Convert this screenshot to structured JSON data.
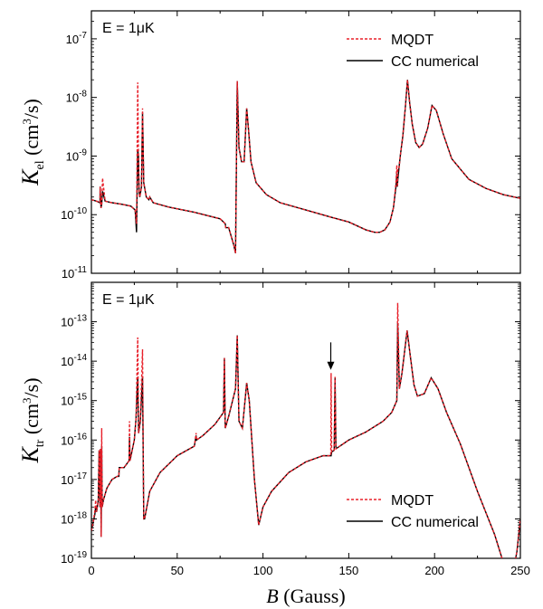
{
  "chart_data": [
    {
      "type": "line",
      "panel_label": "E = 1μK",
      "ylabel": {
        "symbol": "K",
        "sub": "el",
        "unit": " (cm",
        "unit_sup": "3",
        "unit_tail": "/s)"
      },
      "xlim": [
        0,
        250
      ],
      "ylim": [
        1e-11,
        3e-07
      ],
      "yscale": "log",
      "x_ticks": [
        0,
        50,
        100,
        150,
        200,
        250
      ],
      "y_ticks": [
        {
          "value": 1e-11,
          "base": "10",
          "exp": "-11"
        },
        {
          "value": 1e-10,
          "base": "10",
          "exp": "-10"
        },
        {
          "value": 1e-09,
          "base": "10",
          "exp": "-9"
        },
        {
          "value": 1e-08,
          "base": "10",
          "exp": "-8"
        },
        {
          "value": 1e-07,
          "base": "10",
          "exp": "-7"
        }
      ],
      "legend_position": "top-right",
      "series": [
        {
          "name": "MQDT",
          "color": "#e8202a",
          "dash": "dashed",
          "x": [
            0,
            3,
            5,
            5.1,
            5.6,
            6,
            6.5,
            8,
            12,
            18,
            23,
            25.5,
            26.3,
            27,
            27.4,
            27.8,
            28.2,
            29.2,
            29.8,
            30.5,
            32,
            33.5,
            34,
            36,
            45,
            60,
            75,
            78,
            78.3,
            80,
            83,
            84,
            85,
            86,
            87.5,
            89,
            90.5,
            91.5,
            93,
            96,
            102,
            110,
            125,
            140,
            150,
            160,
            165,
            168,
            171,
            174,
            176,
            177.5,
            178,
            178.3,
            178.6,
            179.2,
            180,
            181.5,
            183,
            184.2,
            185.5,
            187,
            189,
            191,
            193,
            196,
            198.5,
            201,
            205,
            210,
            220,
            230,
            240,
            250
          ],
          "y": [
            1.8e-10,
            1.7e-10,
            1.6e-10,
            3e-10,
            1.3e-10,
            1.5e-10,
            4.2e-10,
            1.7e-10,
            1.6e-10,
            1.5e-10,
            1.4e-10,
            1.2e-10,
            7e-11,
            1.8e-08,
            1.2e-09,
            2.4e-10,
            2e-10,
            3e-10,
            6.5e-09,
            3.5e-10,
            2e-10,
            1.8e-10,
            2e-10,
            1.6e-10,
            1.35e-10,
            1.1e-10,
            8.5e-11,
            7e-11,
            6e-11,
            6e-11,
            3e-11,
            2.2e-11,
            1.9e-08,
            1.4e-09,
            8e-10,
            8e-10,
            6.5e-09,
            3e-09,
            8e-10,
            3.5e-10,
            2.2e-10,
            1.6e-10,
            1.2e-10,
            9e-11,
            7.5e-11,
            5.5e-11,
            5e-11,
            5e-11,
            5.5e-11,
            7.5e-11,
            1.3e-10,
            3.5e-10,
            7e-10,
            3e-10,
            6e-10,
            6e-10,
            1e-09,
            2.2e-09,
            7e-09,
            2e-08,
            8e-09,
            3.5e-09,
            1.7e-09,
            1.4e-09,
            1.6e-09,
            3e-09,
            7.3e-09,
            6e-09,
            2.4e-09,
            9e-10,
            4e-10,
            2.8e-10,
            2.2e-10,
            1.9e-10
          ]
        },
        {
          "name": "CC numerical",
          "color": "#000000",
          "dash": "solid",
          "x": [
            0,
            3,
            5,
            5.1,
            5.6,
            6,
            6.5,
            8,
            12,
            18,
            23,
            25.5,
            26.3,
            27,
            27.4,
            27.8,
            28.2,
            29.2,
            29.8,
            30.5,
            32,
            33.5,
            34,
            36,
            45,
            60,
            75,
            78,
            78.3,
            80,
            83,
            84,
            85,
            86,
            87.5,
            89,
            90.5,
            91.5,
            93,
            96,
            102,
            110,
            125,
            140,
            150,
            160,
            165,
            168,
            171,
            174,
            176,
            177.5,
            178,
            178.3,
            178.6,
            179.2,
            180,
            181.5,
            183,
            184.2,
            185.5,
            187,
            189,
            191,
            193,
            196,
            198.5,
            201,
            205,
            210,
            220,
            230,
            240,
            250
          ],
          "y": [
            1.8e-10,
            1.7e-10,
            1.6e-10,
            3e-10,
            1.3e-10,
            1.5e-10,
            2.5e-10,
            1.7e-10,
            1.6e-10,
            1.5e-10,
            1.4e-10,
            1.2e-10,
            5e-11,
            1.3e-09,
            1e-09,
            2.4e-10,
            2e-10,
            3e-10,
            5.5e-09,
            3.5e-10,
            2e-10,
            1.8e-10,
            2e-10,
            1.6e-10,
            1.35e-10,
            1.1e-10,
            8.5e-11,
            7e-11,
            6e-11,
            6e-11,
            3e-11,
            2.2e-11,
            1.9e-08,
            1.4e-09,
            8e-10,
            8e-10,
            6.5e-09,
            3e-09,
            8e-10,
            3.5e-10,
            2.2e-10,
            1.6e-10,
            1.2e-10,
            9e-11,
            7.5e-11,
            5.5e-11,
            5e-11,
            5e-11,
            5.5e-11,
            7.5e-11,
            1.3e-10,
            3e-10,
            5e-10,
            3e-10,
            4e-10,
            6e-10,
            1e-09,
            2.2e-09,
            7e-09,
            2e-08,
            8e-09,
            3.5e-09,
            1.7e-09,
            1.4e-09,
            1.6e-09,
            3e-09,
            7.3e-09,
            6e-09,
            2.4e-09,
            9e-10,
            4e-10,
            2.8e-10,
            2.2e-10,
            1.9e-10
          ]
        }
      ]
    },
    {
      "type": "line",
      "panel_label": "E = 1μK",
      "ylabel": {
        "symbol": "K",
        "sub": "tr",
        "unit": " (cm",
        "unit_sup": "3",
        "unit_tail": "/s)"
      },
      "xlim": [
        0,
        250
      ],
      "ylim": [
        1e-19,
        1e-12
      ],
      "yscale": "log",
      "x_ticks": [
        0,
        50,
        100,
        150,
        200,
        250
      ],
      "y_ticks": [
        {
          "value": 1e-19,
          "base": "10",
          "exp": "-19"
        },
        {
          "value": 1e-18,
          "base": "10",
          "exp": "-18"
        },
        {
          "value": 1e-17,
          "base": "10",
          "exp": "-17"
        },
        {
          "value": 1e-16,
          "base": "10",
          "exp": "-16"
        },
        {
          "value": 1e-15,
          "base": "10",
          "exp": "-15"
        },
        {
          "value": 1e-14,
          "base": "10",
          "exp": "-14"
        },
        {
          "value": 1e-13,
          "base": "10",
          "exp": "-13"
        }
      ],
      "legend_position": "bottom-right",
      "annotations": [
        {
          "type": "arrow",
          "x": 139.5,
          "y_tail": 3e-14,
          "y_head": 6e-15
        }
      ],
      "series": [
        {
          "name": "MQDT",
          "color": "#e8202a",
          "dash": "dashed",
          "x": [
            0,
            1,
            2,
            2.5,
            3,
            4,
            4.5,
            5,
            5.3,
            5.7,
            6,
            6.3,
            7,
            9,
            12,
            15,
            16,
            16.2,
            19,
            22,
            22.2,
            22.5,
            25,
            26,
            27,
            27.5,
            28.5,
            29.8,
            30.5,
            31,
            34,
            40,
            50,
            60,
            61,
            61.3,
            65,
            72,
            77,
            77.5,
            78,
            80,
            84,
            85,
            86,
            88,
            90.5,
            92,
            95,
            97.5,
            100,
            105,
            115,
            125,
            135,
            139.5,
            139.7,
            140,
            141.5,
            142,
            142.5,
            150,
            160,
            170,
            175,
            178,
            178.5,
            179.5,
            181,
            184,
            186,
            188,
            190,
            194,
            198,
            202,
            207,
            215,
            225,
            235,
            240,
            244,
            246,
            248,
            250
          ],
          "y": [
            5e-19,
            8e-19,
            1.6e-18,
            3e-18,
            1.5e-18,
            3e-18,
            5.5e-17,
            2e-18,
            6e-17,
            3.5e-19,
            2e-16,
            2e-18,
            3e-18,
            6e-18,
            1e-17,
            1.2e-17,
            1.2e-17,
            2e-17,
            2e-17,
            3e-17,
            3e-16,
            3e-17,
            1e-16,
            3.5e-16,
            4e-14,
            1.5e-16,
            3e-16,
            2e-14,
            1e-18,
            1e-18,
            5e-18,
            1.5e-17,
            4e-17,
            7e-17,
            1.5e-16,
            1e-16,
            1.3e-16,
            2.5e-16,
            5e-16,
            1.2e-14,
            2e-16,
            4e-16,
            2e-15,
            4.5e-14,
            3e-16,
            2e-16,
            2.8e-15,
            1e-15,
            1e-17,
            7e-19,
            2e-18,
            5e-18,
            1.5e-17,
            2.8e-17,
            4e-17,
            4e-17,
            5e-15,
            5e-17,
            5.5e-17,
            4e-15,
            6e-17,
            1e-16,
            1.6e-16,
            3e-16,
            5e-16,
            1e-15,
            3e-13,
            2e-15,
            5e-15,
            6e-14,
            1.2e-14,
            2.5e-15,
            1.3e-15,
            1.5e-15,
            3.8e-15,
            2e-15,
            5e-16,
            8e-17,
            5e-18,
            4e-19,
            8e-20,
            3e-20,
            5e-20,
            1.5e-19,
            1e-18
          ]
        },
        {
          "name": "CC numerical",
          "color": "#000000",
          "dash": "solid",
          "x": [
            0,
            1,
            2,
            2.5,
            3,
            4,
            4.5,
            5,
            5.3,
            5.7,
            6,
            6.3,
            7,
            9,
            12,
            15,
            16,
            16.2,
            19,
            22,
            22.2,
            22.5,
            25,
            26,
            27,
            27.5,
            28.5,
            29.8,
            30.5,
            31,
            34,
            40,
            50,
            60,
            61,
            61.3,
            65,
            72,
            77,
            77.5,
            78,
            80,
            84,
            85,
            86,
            88,
            90.5,
            92,
            95,
            97.5,
            100,
            105,
            115,
            125,
            135,
            139.5,
            139.7,
            140,
            141.5,
            142,
            142.5,
            150,
            160,
            170,
            175,
            178,
            178.5,
            179.5,
            181,
            184,
            186,
            188,
            190,
            194,
            198,
            202,
            207,
            215,
            225,
            235,
            240,
            244,
            246,
            248,
            250
          ],
          "y": [
            5e-19,
            8e-19,
            1.3e-18,
            2e-18,
            1.5e-18,
            3e-18,
            5.5e-17,
            2e-18,
            6e-17,
            3.5e-19,
            7e-17,
            2e-18,
            3e-18,
            6e-18,
            1e-17,
            1.2e-17,
            1.2e-17,
            2e-17,
            2e-17,
            3e-17,
            1.2e-16,
            3e-17,
            1e-16,
            3.5e-16,
            4e-15,
            1.5e-16,
            3e-16,
            4e-15,
            1e-18,
            1e-18,
            5e-18,
            1.5e-17,
            4e-17,
            7e-17,
            1.3e-16,
            1e-16,
            1.3e-16,
            2.5e-16,
            5e-16,
            1.2e-14,
            2e-16,
            4e-16,
            2e-15,
            4.5e-14,
            3e-16,
            2e-16,
            2.8e-15,
            1e-15,
            1e-17,
            7e-19,
            2e-18,
            5e-18,
            1.5e-17,
            2.8e-17,
            4e-17,
            4e-17,
            4e-17,
            5e-17,
            5.5e-17,
            4e-15,
            6e-17,
            1e-16,
            1.6e-16,
            3e-16,
            5e-16,
            1e-15,
            9e-14,
            2e-15,
            5e-15,
            6e-14,
            1.2e-14,
            2.5e-15,
            1.3e-15,
            1.5e-15,
            3.8e-15,
            2e-15,
            5e-16,
            8e-17,
            5e-18,
            4e-19,
            8e-20,
            3e-20,
            5e-20,
            1.5e-19,
            1e-18
          ]
        }
      ]
    }
  ],
  "xlabel": {
    "symbol": "B",
    "unit": " (Gauss)"
  }
}
